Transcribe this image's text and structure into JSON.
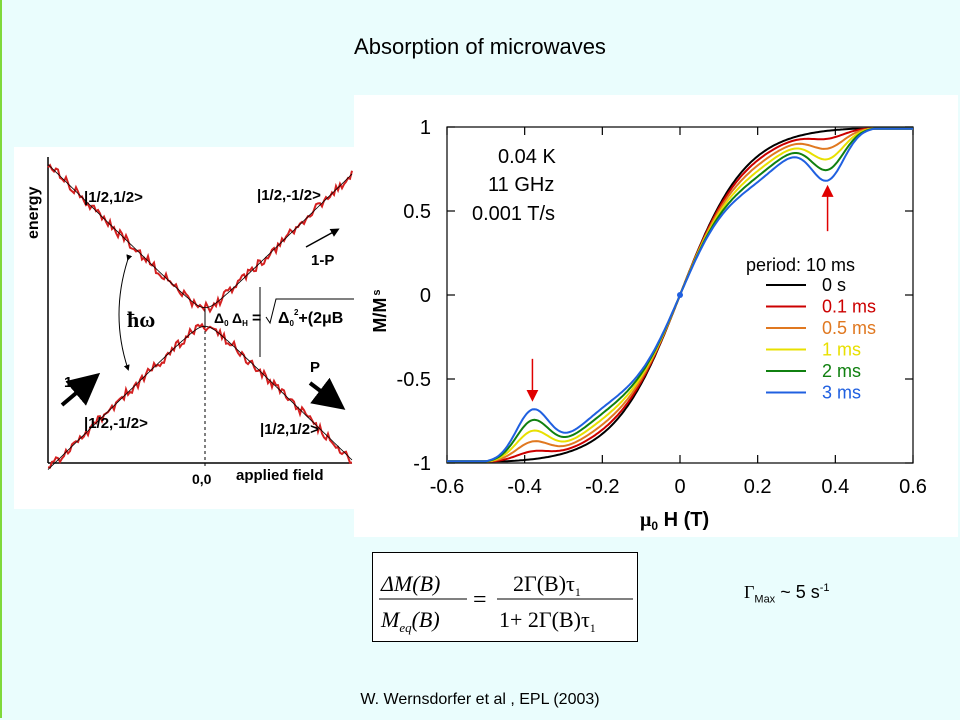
{
  "slide": {
    "title": "Absorption of microwaves",
    "citation": "W. Wernsdorfer  et al  , EPL (2003)",
    "gamma_symbol": "Γ",
    "gamma_sub": "Max",
    "gamma_value": " ~ 5 s",
    "gamma_sup": "-1"
  },
  "energy_diagram": {
    "y_label": "energy",
    "x_label": "applied field",
    "origin_label": "0,0",
    "states": {
      "top_left": "|1/2,1/2>",
      "top_right": "|1/2,-1/2>",
      "bottom_left": "|1/2,-1/2>",
      "bottom_right": "|1/2,1/2>"
    },
    "hbar_omega": "ħω",
    "delta0": "Δ",
    "delta0_sub": "0",
    "deltaH": "Δ",
    "deltaH_sub": "H",
    "formula_eq": "=",
    "formula_rest": "+(2μ",
    "formula_tail": "B",
    "formula_sub": "0",
    "formula_sup": "2",
    "arrow_labels": {
      "one": "1",
      "p": "P",
      "one_minus_p": "1-P"
    },
    "colors": {
      "noise": "#d42020",
      "line": "#000000"
    }
  },
  "chart_data": {
    "type": "line",
    "xlabel_mu": "μ",
    "xlabel_sub": "0",
    "xlabel_rest": " H (T)",
    "ylabel_main": "M/M",
    "ylabel_sub": "s",
    "xlim": [
      -0.6,
      0.6
    ],
    "ylim": [
      -1,
      1
    ],
    "xticks": [
      "-0.6",
      "-0.4",
      "-0.2",
      "0",
      "0.2",
      "0.4",
      "0.6"
    ],
    "yticks": [
      "1",
      "0.5",
      "0",
      "-0.5",
      "-1"
    ],
    "annotations": [
      "0.04 K",
      "11 GHz",
      "0.001 T/s"
    ],
    "legend_title": "period: 10 ms",
    "legend_placement": "right",
    "series": [
      {
        "name": "0 s",
        "color": "#000000",
        "dip": 0.0
      },
      {
        "name": "0.1 ms",
        "color": "#cc0000",
        "dip": 0.045
      },
      {
        "name": "0.5 ms",
        "color": "#e07820",
        "dip": 0.1
      },
      {
        "name": "1 ms",
        "color": "#e8e000",
        "dip": 0.16
      },
      {
        "name": "2 ms",
        "color": "#108010",
        "dip": 0.22
      },
      {
        "name": "3 ms",
        "color": "#2060e0",
        "dip": 0.28
      }
    ],
    "resonance_x": [
      -0.38,
      0.38
    ],
    "arrow_color": "#e00000"
  }
}
